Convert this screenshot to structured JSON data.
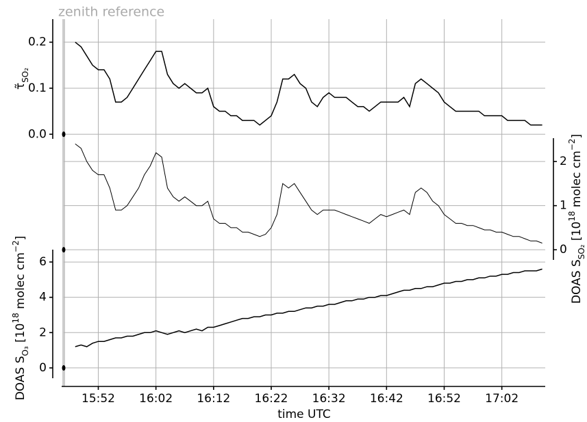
{
  "chart_data": {
    "type": "line",
    "annotation": "zenith reference",
    "xlabel": "time UTC",
    "xlim": [
      "15:46",
      "17:10"
    ],
    "xticks": [
      "15:52",
      "16:02",
      "16:12",
      "16:22",
      "16:32",
      "16:42",
      "16:52",
      "17:02"
    ],
    "grid": true,
    "x": [
      "15:48",
      "15:49",
      "15:50",
      "15:51",
      "15:52",
      "15:53",
      "15:54",
      "15:55",
      "15:56",
      "15:57",
      "15:58",
      "15:59",
      "16:00",
      "16:01",
      "16:02",
      "16:03",
      "16:04",
      "16:05",
      "16:06",
      "16:07",
      "16:08",
      "16:09",
      "16:10",
      "16:11",
      "16:12",
      "16:13",
      "16:14",
      "16:15",
      "16:16",
      "16:17",
      "16:18",
      "16:19",
      "16:20",
      "16:21",
      "16:22",
      "16:23",
      "16:24",
      "16:25",
      "16:26",
      "16:27",
      "16:28",
      "16:29",
      "16:30",
      "16:31",
      "16:32",
      "16:33",
      "16:34",
      "16:35",
      "16:36",
      "16:37",
      "16:38",
      "16:39",
      "16:40",
      "16:41",
      "16:42",
      "16:43",
      "16:44",
      "16:45",
      "16:46",
      "16:47",
      "16:48",
      "16:49",
      "16:50",
      "16:51",
      "16:52",
      "16:53",
      "16:54",
      "16:55",
      "16:56",
      "16:57",
      "16:58",
      "16:59",
      "17:00",
      "17:01",
      "17:02",
      "17:03",
      "17:04",
      "17:05",
      "17:06",
      "17:07",
      "17:08",
      "17:09"
    ],
    "panels": [
      {
        "side": "left",
        "color": "#000000",
        "ylabel": [
          {
            "text": "τ̃"
          },
          {
            "text": "SO₂",
            "sub": true
          }
        ],
        "ylim": [
          -0.01,
          0.25
        ],
        "yticks": [
          {
            "value": 0,
            "label": "0.0"
          },
          {
            "value": 0.1,
            "label": "0.1"
          },
          {
            "value": 0.2,
            "label": "0.2"
          }
        ],
        "zenith_value": 0,
        "values": [
          0.2,
          0.19,
          0.17,
          0.15,
          0.14,
          0.14,
          0.12,
          0.07,
          0.07,
          0.08,
          0.1,
          0.12,
          0.14,
          0.16,
          0.18,
          0.18,
          0.13,
          0.11,
          0.1,
          0.11,
          0.1,
          0.09,
          0.09,
          0.1,
          0.06,
          0.05,
          0.05,
          0.04,
          0.04,
          0.03,
          0.03,
          0.03,
          0.02,
          0.03,
          0.04,
          0.07,
          0.12,
          0.12,
          0.13,
          0.11,
          0.1,
          0.07,
          0.06,
          0.08,
          0.09,
          0.08,
          0.08,
          0.08,
          0.07,
          0.06,
          0.06,
          0.05,
          0.06,
          0.07,
          0.07,
          0.07,
          0.07,
          0.08,
          0.06,
          0.11,
          0.12,
          0.11,
          0.1,
          0.09,
          0.07,
          0.06,
          0.05,
          0.05,
          0.05,
          0.05,
          0.05,
          0.04,
          0.04,
          0.04,
          0.04,
          0.03,
          0.03,
          0.03,
          0.03,
          0.02,
          0.02,
          0.02
        ]
      },
      {
        "side": "right",
        "color": "#000000",
        "ylabel": [
          {
            "text": "DOAS S"
          },
          {
            "text": "SO₂",
            "sub": true
          },
          {
            "text": " [10"
          },
          {
            "text": "18",
            "sup": true
          },
          {
            "text": " molec cm"
          },
          {
            "text": "−2",
            "sup": true
          },
          {
            "text": "]"
          }
        ],
        "ylim": [
          -0.23,
          2.53
        ],
        "yticks": [
          0,
          1,
          2
        ],
        "zenith_value": 0,
        "values": [
          2.4,
          2.3,
          2.0,
          1.8,
          1.7,
          1.7,
          1.4,
          0.9,
          0.9,
          1.0,
          1.2,
          1.4,
          1.7,
          1.9,
          2.2,
          2.1,
          1.4,
          1.2,
          1.1,
          1.2,
          1.1,
          1.0,
          1.0,
          1.1,
          0.7,
          0.6,
          0.6,
          0.5,
          0.5,
          0.4,
          0.4,
          0.35,
          0.3,
          0.35,
          0.5,
          0.8,
          1.5,
          1.4,
          1.5,
          1.3,
          1.1,
          0.9,
          0.8,
          0.9,
          0.9,
          0.9,
          0.85,
          0.8,
          0.75,
          0.7,
          0.65,
          0.6,
          0.7,
          0.8,
          0.75,
          0.8,
          0.85,
          0.9,
          0.8,
          1.3,
          1.4,
          1.3,
          1.1,
          1.0,
          0.8,
          0.7,
          0.6,
          0.6,
          0.55,
          0.55,
          0.5,
          0.45,
          0.45,
          0.4,
          0.4,
          0.35,
          0.3,
          0.3,
          0.25,
          0.2,
          0.2,
          0.15
        ]
      },
      {
        "side": "left",
        "color": "#000000",
        "ylabel": [
          {
            "text": "DOAS S"
          },
          {
            "text": "O₃",
            "sub": true
          },
          {
            "text": " [10"
          },
          {
            "text": "18",
            "sup": true
          },
          {
            "text": " molec cm"
          },
          {
            "text": "−2",
            "sup": true
          },
          {
            "text": "]"
          }
        ],
        "ylim": [
          -1.05,
          6.7
        ],
        "yticks": [
          0,
          2,
          4,
          6
        ],
        "zenith_value": 0,
        "values": [
          1.2,
          1.3,
          1.2,
          1.4,
          1.5,
          1.5,
          1.6,
          1.7,
          1.7,
          1.8,
          1.8,
          1.9,
          2.0,
          2.0,
          2.1,
          2.0,
          1.9,
          2.0,
          2.1,
          2.0,
          2.1,
          2.2,
          2.1,
          2.3,
          2.3,
          2.4,
          2.5,
          2.6,
          2.7,
          2.8,
          2.8,
          2.9,
          2.9,
          3.0,
          3.0,
          3.1,
          3.1,
          3.2,
          3.2,
          3.3,
          3.4,
          3.4,
          3.5,
          3.5,
          3.6,
          3.6,
          3.7,
          3.8,
          3.8,
          3.9,
          3.9,
          4.0,
          4.0,
          4.1,
          4.1,
          4.2,
          4.3,
          4.4,
          4.4,
          4.5,
          4.5,
          4.6,
          4.6,
          4.7,
          4.8,
          4.8,
          4.9,
          4.9,
          5.0,
          5.0,
          5.1,
          5.1,
          5.2,
          5.2,
          5.3,
          5.3,
          5.4,
          5.4,
          5.5,
          5.5,
          5.5,
          5.6
        ]
      }
    ]
  }
}
